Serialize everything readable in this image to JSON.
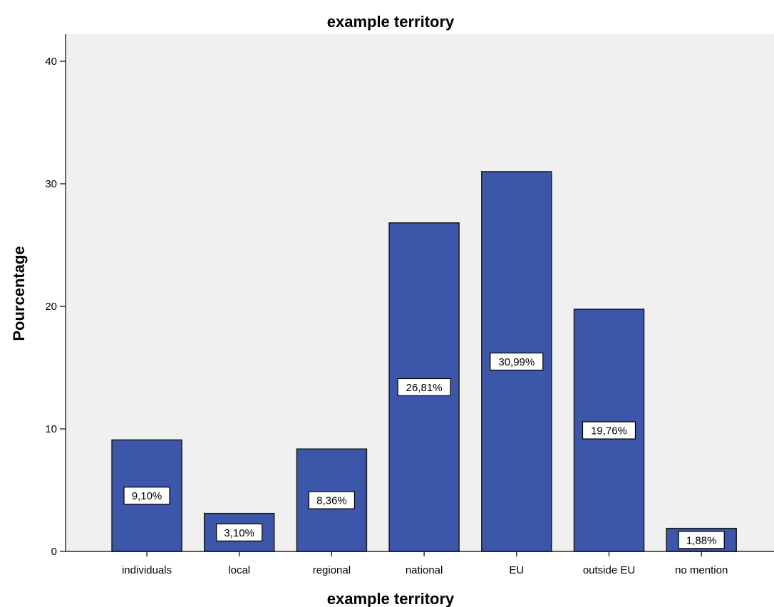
{
  "chart_data": {
    "type": "bar",
    "title": "example territory",
    "xlabel": "example territory",
    "ylabel": "Pourcentage",
    "categories": [
      "individuals",
      "local",
      "regional",
      "national",
      "EU",
      "outside EU",
      "no mention"
    ],
    "values": [
      9.1,
      3.1,
      8.36,
      26.81,
      30.99,
      19.76,
      1.88
    ],
    "data_labels": [
      "9,10%",
      "3,10%",
      "8,36%",
      "26,81%",
      "30,99%",
      "19,76%",
      "1,88%"
    ],
    "ylim": [
      0,
      42
    ],
    "yticks": [
      0,
      10,
      20,
      30,
      40
    ],
    "ytick_labels": [
      "0",
      "10",
      "20",
      "30",
      "40"
    ],
    "grid": false,
    "legend": "none",
    "colors": {
      "bar_fill": "#3c56a9",
      "bar_stroke": "#1a1a1a",
      "plot_background": "#f0f0f0",
      "label_box": "#ffffff"
    }
  }
}
